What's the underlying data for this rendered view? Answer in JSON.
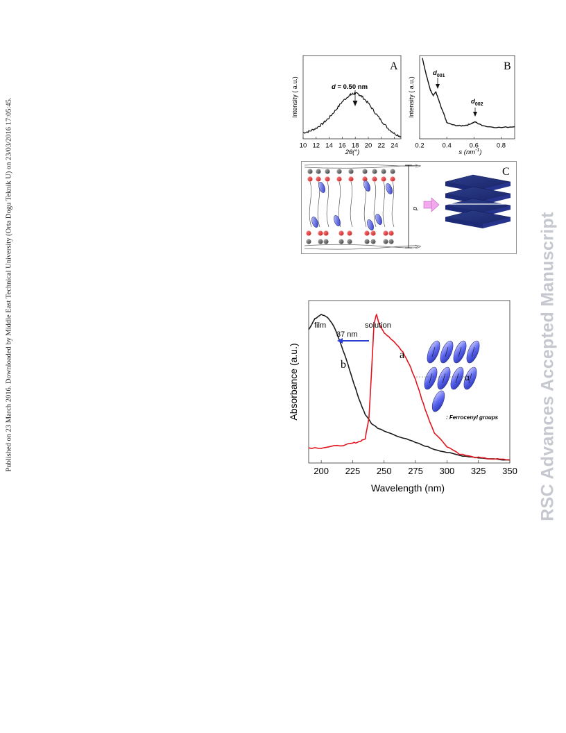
{
  "side_note": "Published on 23 March 2016. Downloaded by Middle East Technical University (Orta Dogu Teknik U) on 23/03/2016 17:05:45.",
  "watermark": "RSC Advances Accepted Manuscript",
  "figure1": {
    "panel_a": {
      "letter": "A",
      "ylabel": "Intensity ( a.u.)",
      "xlabel": "2θ(°)",
      "annotation_d": "d",
      "annotation_value": " = 0.50 nm"
    },
    "panel_b": {
      "letter": "B",
      "ylabel": "Intensity ( a.u.)",
      "xlabel": "s (nm",
      "xlabel_sup": "-1",
      "xlabel_end": ")",
      "peak1": "d",
      "peak1_sub": "001",
      "peak2": "d",
      "peak2_sub": "002"
    },
    "panel_c": {
      "letter": "C",
      "dimension_label": "d"
    }
  },
  "figure2": {
    "label_film": "film",
    "label_solution": "solution",
    "shift": "37 nm",
    "curve_a": "a",
    "curve_b": "b",
    "alpha": "α",
    "legend_text": ": Ferrocenyl groups",
    "colors": {
      "solution": "#e0141e",
      "film": "#1a1a1a",
      "arrow": "#2a3fd0",
      "ellipse": "#4a56e0"
    }
  },
  "chart_data": [
    {
      "type": "line",
      "title": "",
      "xlabel": "2θ(°)",
      "ylabel": "Intensity ( a.u.)",
      "xlim": [
        10,
        25
      ],
      "x_ticks": [
        10,
        12,
        14,
        16,
        18,
        20,
        22,
        24
      ],
      "series": [
        {
          "x": [
            10,
            11,
            12,
            13,
            14,
            15,
            16,
            17,
            17.5,
            18,
            18.5,
            19,
            20,
            21,
            22,
            23,
            24,
            25
          ],
          "y": [
            0.08,
            0.1,
            0.14,
            0.2,
            0.28,
            0.38,
            0.49,
            0.57,
            0.59,
            0.6,
            0.59,
            0.56,
            0.47,
            0.35,
            0.24,
            0.14,
            0.07,
            0.03
          ]
        }
      ]
    },
    {
      "type": "line",
      "title": "",
      "xlabel": "s (nm-1)",
      "ylabel": "Intensity ( a.u.)",
      "xlim": [
        0.2,
        0.9
      ],
      "x_ticks": [
        0.2,
        0.4,
        0.6,
        0.8
      ],
      "series": [
        {
          "x": [
            0.22,
            0.25,
            0.28,
            0.3,
            0.32,
            0.34,
            0.36,
            0.38,
            0.4,
            0.45,
            0.5,
            0.55,
            0.58,
            0.61,
            0.64,
            0.7,
            0.8,
            0.9
          ],
          "y": [
            1.0,
            0.78,
            0.6,
            0.54,
            0.58,
            0.48,
            0.38,
            0.3,
            0.2,
            0.17,
            0.16,
            0.17,
            0.19,
            0.21,
            0.18,
            0.15,
            0.14,
            0.15
          ]
        }
      ]
    },
    {
      "type": "line",
      "title": "",
      "xlabel": "Wavelength (nm)",
      "ylabel": "Absorbance (a.u.)",
      "xlim": [
        190,
        350
      ],
      "x_ticks": [
        200,
        225,
        250,
        275,
        300,
        325,
        350
      ],
      "series": [
        {
          "x": [
            190,
            195,
            200,
            205,
            210,
            215,
            220,
            225,
            230,
            235,
            240,
            245,
            250,
            260,
            270,
            280,
            290,
            300,
            310,
            320,
            330,
            340,
            350
          ],
          "y": [
            0.88,
            0.95,
            0.98,
            0.96,
            0.9,
            0.8,
            0.68,
            0.55,
            0.42,
            0.32,
            0.26,
            0.23,
            0.21,
            0.18,
            0.15,
            0.12,
            0.09,
            0.07,
            0.05,
            0.04,
            0.03,
            0.025,
            0.02
          ]
        },
        {
          "x": [
            190,
            200,
            210,
            220,
            225,
            230,
            235,
            238,
            240,
            242,
            244,
            246,
            250,
            255,
            260,
            265,
            270,
            275,
            280,
            285,
            290,
            300,
            310,
            320,
            330,
            340,
            350
          ],
          "y": [
            0.1,
            0.1,
            0.11,
            0.12,
            0.13,
            0.14,
            0.16,
            0.3,
            0.6,
            0.92,
            0.98,
            0.92,
            0.86,
            0.82,
            0.78,
            0.73,
            0.65,
            0.55,
            0.42,
            0.3,
            0.2,
            0.11,
            0.06,
            0.04,
            0.03,
            0.025,
            0.02
          ]
        }
      ]
    }
  ]
}
